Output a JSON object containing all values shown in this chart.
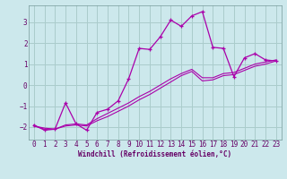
{
  "xlabel": "Windchill (Refroidissement éolien,°C)",
  "background_color": "#cce8ec",
  "grid_color": "#aacccc",
  "line_color": "#aa00aa",
  "xlim": [
    -0.5,
    23.5
  ],
  "ylim": [
    -2.6,
    3.8
  ],
  "xticks": [
    0,
    1,
    2,
    3,
    4,
    5,
    6,
    7,
    8,
    9,
    10,
    11,
    12,
    13,
    14,
    15,
    16,
    17,
    18,
    19,
    20,
    21,
    22,
    23
  ],
  "yticks": [
    -2,
    -1,
    0,
    1,
    2,
    3
  ],
  "zigzag_x": [
    0,
    1,
    2,
    3,
    4,
    5,
    6,
    7,
    8,
    9,
    10,
    11,
    12,
    13,
    14,
    15,
    16,
    17,
    18,
    19,
    20,
    21,
    22,
    23
  ],
  "zigzag_y": [
    -1.9,
    -2.15,
    -2.1,
    -0.85,
    -1.85,
    -2.15,
    -1.3,
    -1.15,
    -0.75,
    0.3,
    1.75,
    1.7,
    2.3,
    3.1,
    2.8,
    3.3,
    3.5,
    1.8,
    1.75,
    0.4,
    1.3,
    1.5,
    1.2,
    1.15
  ],
  "line2_x": [
    0,
    1,
    2,
    3,
    4,
    5,
    6,
    7,
    8,
    9,
    10,
    11,
    12,
    13,
    14,
    15,
    16,
    17,
    18,
    19,
    20,
    21,
    22,
    23
  ],
  "line2_y": [
    -1.95,
    -2.05,
    -2.1,
    -1.9,
    -1.85,
    -1.9,
    -1.6,
    -1.35,
    -1.1,
    -0.85,
    -0.55,
    -0.3,
    0.0,
    0.3,
    0.55,
    0.75,
    0.35,
    0.35,
    0.55,
    0.6,
    0.8,
    1.0,
    1.1,
    1.2
  ],
  "line3_x": [
    0,
    1,
    2,
    3,
    4,
    5,
    6,
    7,
    8,
    9,
    10,
    11,
    12,
    13,
    14,
    15,
    16,
    17,
    18,
    19,
    20,
    21,
    22,
    23
  ],
  "line3_y": [
    -1.95,
    -2.1,
    -2.1,
    -1.95,
    -1.9,
    -1.95,
    -1.7,
    -1.5,
    -1.25,
    -1.0,
    -0.7,
    -0.45,
    -0.15,
    0.15,
    0.45,
    0.65,
    0.2,
    0.25,
    0.45,
    0.5,
    0.7,
    0.9,
    1.0,
    1.15
  ]
}
